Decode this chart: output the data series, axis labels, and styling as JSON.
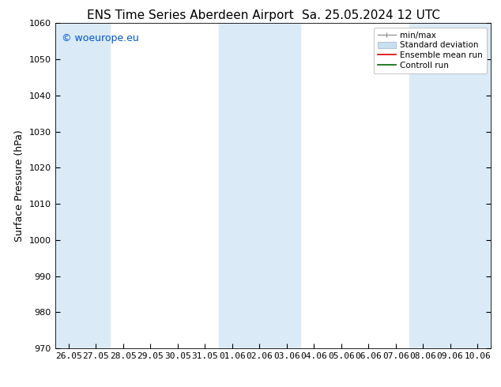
{
  "title": "ENS Time Series Aberdeen Airport",
  "title2": "Sa. 25.05.2024 12 UTC",
  "ylabel": "Surface Pressure (hPa)",
  "ylim": [
    970,
    1060
  ],
  "yticks": [
    970,
    980,
    990,
    1000,
    1010,
    1020,
    1030,
    1040,
    1050,
    1060
  ],
  "xtick_labels": [
    "26.05",
    "27.05",
    "28.05",
    "29.05",
    "30.05",
    "31.05",
    "01.06",
    "02.06",
    "03.06",
    "04.06",
    "05.06",
    "06.06",
    "07.06",
    "08.06",
    "09.06",
    "10.06"
  ],
  "watermark": "© woeurope.eu",
  "watermark_color": "#0055cc",
  "shaded_band_color": "#daeaf7",
  "shaded_columns_x": [
    0,
    1,
    6,
    7,
    8,
    13,
    14,
    15
  ],
  "legend_entries": [
    "min/max",
    "Standard deviation",
    "Ensemble mean run",
    "Controll run"
  ],
  "legend_line_color": "#999999",
  "legend_std_color": "#c8dff0",
  "legend_ens_color": "#dd0000",
  "legend_ctrl_color": "#006600",
  "background_color": "#ffffff",
  "title_fontsize": 11,
  "tick_fontsize": 8,
  "label_fontsize": 9,
  "legend_fontsize": 7.5
}
